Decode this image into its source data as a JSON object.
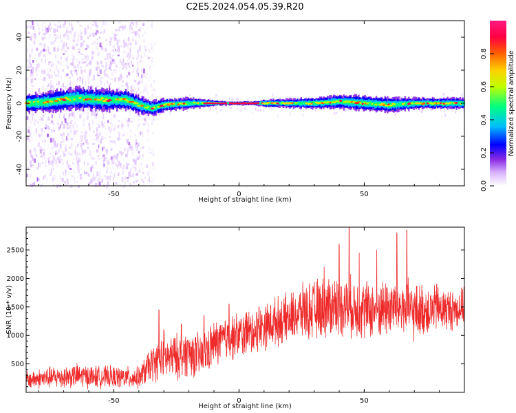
{
  "figure_title": "C2E5.2024.054.05.39.R20",
  "colors": {
    "snr_line": "#ee2a2a",
    "colormap": [
      "#ffffff",
      "#d9b3ff",
      "#8a2be2",
      "#0000ff",
      "#00bfff",
      "#00ff80",
      "#c0ff00",
      "#ffd000",
      "#ff6000",
      "#ff0040",
      "#ff1a80"
    ]
  },
  "chart_data": [
    {
      "type": "heatmap",
      "title": "C2E5.2024.054.05.39.R20",
      "xlabel": "Height of straight line (km)",
      "ylabel": "Frequency (Hz)",
      "xlim": [
        -85,
        90
      ],
      "ylim": [
        -50,
        50
      ],
      "xticks": [
        -50,
        0,
        50
      ],
      "yticks": [
        -40,
        -20,
        0,
        20,
        40
      ],
      "colorbar": {
        "label": "Normalized spectral amplitude",
        "ticks": [
          0.0,
          0.2,
          0.4,
          0.6,
          0.8
        ],
        "range": [
          0,
          1
        ]
      },
      "centerline_frequency": [
        [
          -85,
          0
        ],
        [
          -75,
          1
        ],
        [
          -65,
          3
        ],
        [
          -55,
          2
        ],
        [
          -45,
          2
        ],
        [
          -40,
          -1
        ],
        [
          -35,
          -3
        ],
        [
          -30,
          -1
        ],
        [
          -20,
          0
        ],
        [
          -10,
          0
        ],
        [
          0,
          0
        ],
        [
          10,
          0
        ],
        [
          20,
          0
        ],
        [
          30,
          0
        ],
        [
          40,
          1
        ],
        [
          50,
          0
        ],
        [
          60,
          -1
        ],
        [
          70,
          0
        ],
        [
          80,
          0
        ],
        [
          90,
          0
        ]
      ],
      "band_halfwidth_hz": [
        [
          -85,
          5
        ],
        [
          -70,
          6
        ],
        [
          -55,
          6
        ],
        [
          -40,
          5
        ],
        [
          -35,
          4
        ],
        [
          -20,
          3
        ],
        [
          -5,
          1
        ],
        [
          5,
          1
        ],
        [
          10,
          2
        ],
        [
          30,
          3
        ],
        [
          45,
          4
        ],
        [
          60,
          4
        ],
        [
          75,
          3
        ],
        [
          90,
          3
        ]
      ],
      "broadband_noise_region_km": [
        -85,
        -38
      ]
    },
    {
      "type": "line",
      "xlabel": "Height of straight line (km)",
      "ylabel": "SNR (10 * v/v)",
      "xlim": [
        -85,
        90
      ],
      "ylim": [
        0,
        2900
      ],
      "xticks": [
        -50,
        0,
        50
      ],
      "yticks": [
        500,
        1000,
        1500,
        2000,
        2500
      ],
      "series": [
        {
          "envelope_x": [
            -85,
            -75,
            -65,
            -55,
            -45,
            -40,
            -35,
            -30,
            -25,
            -20,
            -15,
            -10,
            -5,
            0,
            5,
            10,
            15,
            20,
            25,
            30,
            35,
            40,
            45,
            50,
            55,
            60,
            65,
            70,
            75,
            80,
            85,
            90
          ],
          "envelope_mean": [
            220,
            260,
            290,
            270,
            260,
            250,
            500,
            600,
            620,
            700,
            620,
            850,
            950,
            1000,
            1050,
            1150,
            1250,
            1300,
            1400,
            1450,
            1500,
            1550,
            1500,
            1450,
            1450,
            1500,
            1500,
            1400,
            1450,
            1450,
            1450,
            1500
          ],
          "envelope_spread": [
            150,
            180,
            200,
            180,
            180,
            180,
            300,
            350,
            380,
            380,
            380,
            380,
            380,
            380,
            380,
            380,
            400,
            400,
            450,
            500,
            520,
            520,
            500,
            500,
            480,
            500,
            500,
            480,
            420,
            380,
            350,
            300
          ],
          "spikes": [
            [
              -32,
              1450
            ],
            [
              -30,
              1100
            ],
            [
              -23,
              1200
            ],
            [
              -14,
              1350
            ],
            [
              -4,
              1550
            ],
            [
              3,
              1400
            ],
            [
              8,
              1500
            ],
            [
              26,
              1750
            ],
            [
              34,
              2200
            ],
            [
              40,
              2600
            ],
            [
              44,
              2900
            ],
            [
              48,
              2450
            ],
            [
              55,
              2500
            ],
            [
              63,
              2800
            ],
            [
              67,
              2850
            ],
            [
              79,
              1900
            ]
          ]
        }
      ]
    }
  ]
}
